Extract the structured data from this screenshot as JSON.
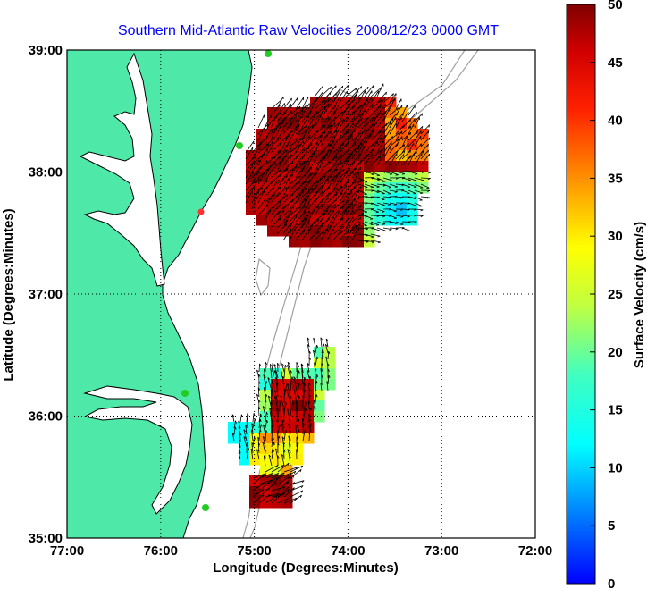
{
  "title": "Southern Mid-Atlantic Raw Velocities 2008/12/23 0000 GMT",
  "x_axis": {
    "label": "Longitude (Degrees:Minutes)",
    "ticks": [
      "77:00",
      "76:00",
      "75:00",
      "74:00",
      "73:00",
      "72:00"
    ],
    "range": [
      -77,
      -72
    ]
  },
  "y_axis": {
    "label": "Latitude (Degrees:Minutes)",
    "ticks": [
      "39:00",
      "38:00",
      "37:00",
      "36:00",
      "35:00"
    ],
    "range": [
      35,
      39
    ]
  },
  "colorbar": {
    "label": "Surface Velocity (cm/s)",
    "ticks": [
      "50",
      "45",
      "40",
      "35",
      "30",
      "25",
      "20",
      "15",
      "10",
      "5",
      "0"
    ],
    "range": [
      0,
      50
    ]
  },
  "colors": {
    "land": "#4ee8a8",
    "coastline": "#000000",
    "bathymetry": "#a0a0a0",
    "station": "#22cc22",
    "station_alt": "#ff3333",
    "title": "#0000ff",
    "arrows": "#000000"
  },
  "grid": true
}
